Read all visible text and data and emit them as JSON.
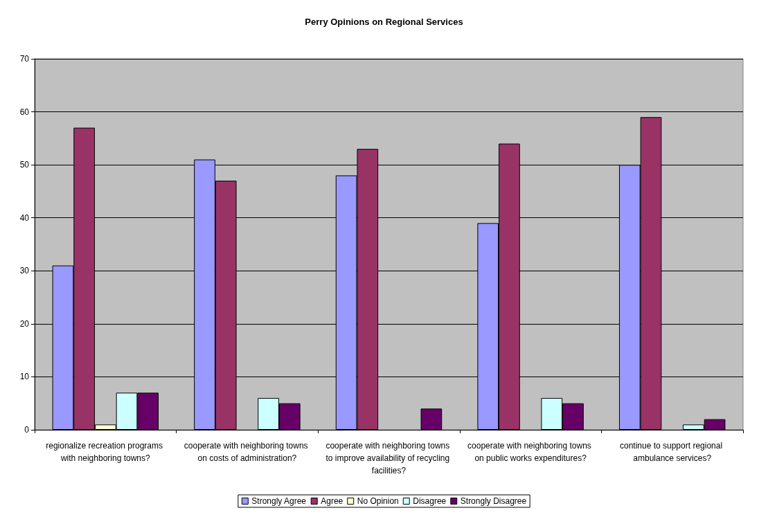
{
  "chart_data": {
    "type": "bar",
    "title": "Perry Opinions on Regional Services",
    "categories": [
      "regionalize recreation programs with neighboring towns?",
      "cooperate with neighboring towns on costs of administration?",
      "cooperate with neighboring towns to improve availability of recycling facilities?",
      "cooperate with neighboring towns on public works expenditures?",
      "continue to support regional ambulance services?"
    ],
    "series": [
      {
        "name": "Strongly Agree",
        "color": "#9999ff",
        "values": [
          31,
          51,
          48,
          39,
          50
        ]
      },
      {
        "name": "Agree",
        "color": "#993366",
        "values": [
          57,
          47,
          53,
          54,
          59
        ]
      },
      {
        "name": "No Opinion",
        "color": "#ffffcc",
        "values": [
          1,
          0,
          0,
          0,
          0
        ]
      },
      {
        "name": "Disagree",
        "color": "#ccffff",
        "values": [
          7,
          6,
          0,
          6,
          1
        ]
      },
      {
        "name": "Strongly Disagree",
        "color": "#660066",
        "values": [
          7,
          5,
          4,
          5,
          2
        ]
      }
    ],
    "ylim": [
      0,
      70
    ],
    "yticks": [
      0,
      10,
      20,
      30,
      40,
      50,
      60,
      70
    ],
    "grid": "y",
    "legend": "bottom"
  }
}
